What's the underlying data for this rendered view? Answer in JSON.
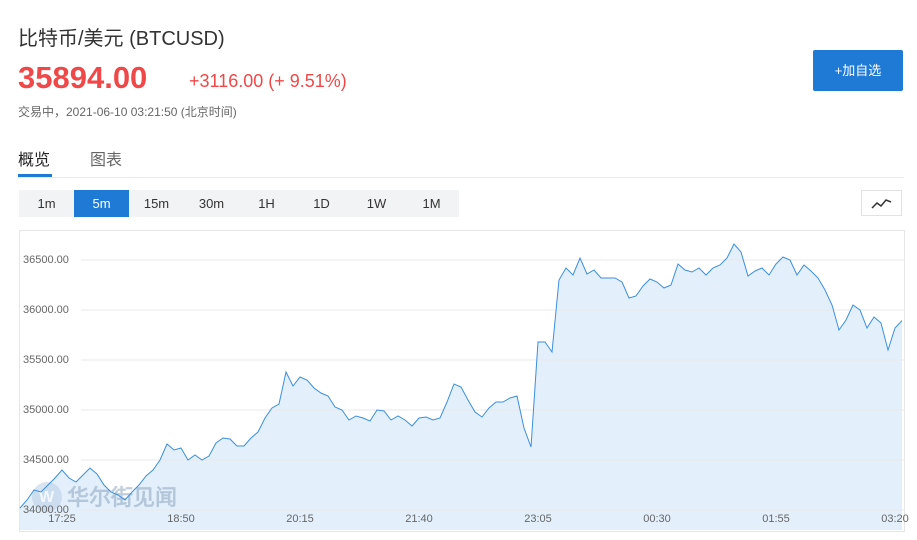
{
  "header": {
    "title": "比特币/美元 (BTCUSD)",
    "price": "35894.00",
    "change": "+3116.00 (+ 9.51%)",
    "status": "交易中，2021-06-10 03:21:50 (北京时间)"
  },
  "button": "+加自选",
  "tabs": [
    "概览",
    "图表"
  ],
  "intervals": [
    "1m",
    "5m",
    "15m",
    "30m",
    "1H",
    "1D",
    "1W",
    "1M"
  ],
  "active_interval": "5m",
  "watermark": "华尔街见闻",
  "chart_data": {
    "type": "area",
    "color": "#3b8ee0",
    "fill": "#e3f0fc",
    "grid": true,
    "ylim": [
      33800,
      36800
    ],
    "yticks": [
      {
        "value": 34000,
        "label": "34000.00"
      },
      {
        "value": 34500,
        "label": "34500.00"
      },
      {
        "value": 35000,
        "label": "35000.00"
      },
      {
        "value": 35500,
        "label": "35500.00"
      },
      {
        "value": 36000,
        "label": "36000.00"
      },
      {
        "value": 36500,
        "label": "36500.00"
      }
    ],
    "categories": [
      null,
      null,
      null,
      null,
      null,
      null,
      "17:25",
      null,
      null,
      null,
      null,
      null,
      null,
      null,
      null,
      null,
      null,
      null,
      null,
      null,
      null,
      null,
      null,
      "18:50",
      null,
      null,
      null,
      null,
      null,
      null,
      null,
      null,
      null,
      null,
      null,
      null,
      null,
      null,
      null,
      null,
      "20:15",
      null,
      null,
      null,
      null,
      null,
      null,
      null,
      null,
      null,
      null,
      null,
      null,
      null,
      null,
      null,
      null,
      "21:40",
      null,
      null,
      null,
      null,
      null,
      null,
      null,
      null,
      null,
      null,
      null,
      null,
      null,
      null,
      null,
      null,
      "23:05",
      null,
      null,
      null,
      null,
      null,
      null,
      null,
      null,
      null,
      null,
      null,
      null,
      null,
      null,
      null,
      null,
      "00:30",
      null,
      null,
      null,
      null,
      null,
      null,
      null,
      null,
      null,
      null,
      null,
      null,
      null,
      null,
      null,
      null,
      "01:55",
      null,
      null,
      null,
      null,
      null,
      null,
      null,
      null,
      null,
      null,
      null,
      null,
      null,
      null,
      null,
      null,
      "03:20",
      null
    ],
    "values": [
      34020,
      34100,
      34200,
      34180,
      34250,
      34320,
      34400,
      34320,
      34280,
      34350,
      34420,
      34360,
      34250,
      34180,
      34150,
      34100,
      34180,
      34250,
      34340,
      34400,
      34500,
      34660,
      34600,
      34620,
      34500,
      34550,
      34500,
      34540,
      34670,
      34720,
      34710,
      34640,
      34640,
      34720,
      34780,
      34920,
      35020,
      35060,
      35380,
      35240,
      35330,
      35300,
      35220,
      35170,
      35140,
      35030,
      35000,
      34900,
      34940,
      34920,
      34890,
      35000,
      34990,
      34900,
      34940,
      34900,
      34840,
      34920,
      34930,
      34900,
      34920,
      35080,
      35260,
      35230,
      35100,
      34980,
      34930,
      35020,
      35080,
      35080,
      35120,
      35140,
      34820,
      34630,
      35680,
      35680,
      35580,
      36300,
      36420,
      36350,
      36520,
      36360,
      36400,
      36320,
      36320,
      36320,
      36280,
      36120,
      36140,
      36240,
      36310,
      36280,
      36220,
      36250,
      36460,
      36400,
      36380,
      36420,
      36350,
      36420,
      36450,
      36520,
      36660,
      36580,
      36340,
      36390,
      36420,
      36350,
      36460,
      36530,
      36500,
      36350,
      36450,
      36390,
      36320,
      36200,
      36050,
      35800,
      35900,
      36050,
      36000,
      35820,
      35930,
      35870,
      35600,
      35820,
      35894
    ]
  }
}
